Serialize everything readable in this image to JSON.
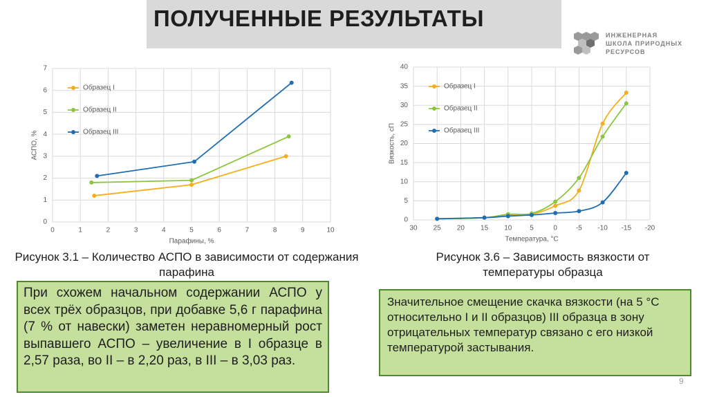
{
  "header": {
    "title": "ПОЛУЧЕННЫЕ РЕЗУЛЬТАТЫ",
    "logo_lines": [
      "ИНЖЕНЕРНАЯ",
      "ШКОЛА ПРИРОДНЫХ",
      "РЕСУРСОВ"
    ]
  },
  "chart_data": [
    {
      "type": "line",
      "x_label": "Парафины, %",
      "y_label": "АСПО, %",
      "xlim": [
        0,
        10
      ],
      "xticks": [
        0,
        1,
        2,
        3,
        4,
        5,
        6,
        7,
        8,
        9,
        10
      ],
      "ylim": [
        0,
        7
      ],
      "yticks": [
        0,
        1,
        2,
        3,
        4,
        5,
        6,
        7
      ],
      "grid": true,
      "legend": "upper left",
      "smooth": false,
      "series": [
        {
          "name": "Образец I",
          "color": "#f5ae1b",
          "x": [
            1.5,
            5,
            8.4
          ],
          "values": [
            1.2,
            1.7,
            3.0
          ]
        },
        {
          "name": "Образец II",
          "color": "#8cc63f",
          "x": [
            1.4,
            5,
            8.5
          ],
          "values": [
            1.8,
            1.9,
            3.9
          ]
        },
        {
          "name": "Образец III",
          "color": "#1f6db3",
          "x": [
            1.6,
            5.1,
            8.6
          ],
          "values": [
            2.1,
            2.75,
            6.35
          ]
        }
      ]
    },
    {
      "type": "line",
      "x_label": "Температура, °С",
      "y_label": "Вязкость, сП",
      "xlim": [
        30,
        -20
      ],
      "xticks": [
        30,
        25,
        20,
        15,
        10,
        5,
        0,
        -5,
        -10,
        -15,
        -20
      ],
      "ylim": [
        0,
        40
      ],
      "yticks": [
        0,
        5,
        10,
        15,
        20,
        25,
        30,
        35,
        40
      ],
      "grid": true,
      "legend": "upper left",
      "smooth": true,
      "series": [
        {
          "name": "Образец I",
          "color": "#f5ae1b",
          "x": [
            25,
            15,
            10,
            5,
            0,
            -5,
            -10,
            -15
          ],
          "values": [
            0.3,
            0.6,
            1.3,
            1.5,
            3.7,
            7.7,
            25.2,
            33.3
          ]
        },
        {
          "name": "Образец II",
          "color": "#8cc63f",
          "x": [
            25,
            15,
            10,
            5,
            0,
            -5,
            -10,
            -15
          ],
          "values": [
            0.3,
            0.6,
            1.5,
            1.7,
            4.8,
            11.0,
            21.8,
            30.5
          ]
        },
        {
          "name": "Образец III",
          "color": "#1f6db3",
          "x": [
            25,
            15,
            10,
            5,
            0,
            -5,
            -10,
            -15
          ],
          "values": [
            0.3,
            0.6,
            1.0,
            1.3,
            1.8,
            2.3,
            4.6,
            12.3
          ]
        }
      ]
    }
  ],
  "captions": [
    "Рисунок 3.1 – Количество АСПО в зависимости от содержания парафина",
    "Рисунок 3.6 – Зависимость вязкости от температуры образца"
  ],
  "notes": [
    "При схожем начальном содержании АСПО у всех трёх образцов, при добавке 5,6 г парафина (7 % от навески) заметен неравномерный рост выпавшего АСПО – увеличение в I образце в 2,57 раза, во II – в 2,20 раз, в III – в 3,03 раз.",
    "Значительное смещение скачка вязкости (на 5 °С относительно I и II образцов) III образца в зону отрицательных температур связано с его низкой температурой застывания."
  ],
  "page_number": 9
}
